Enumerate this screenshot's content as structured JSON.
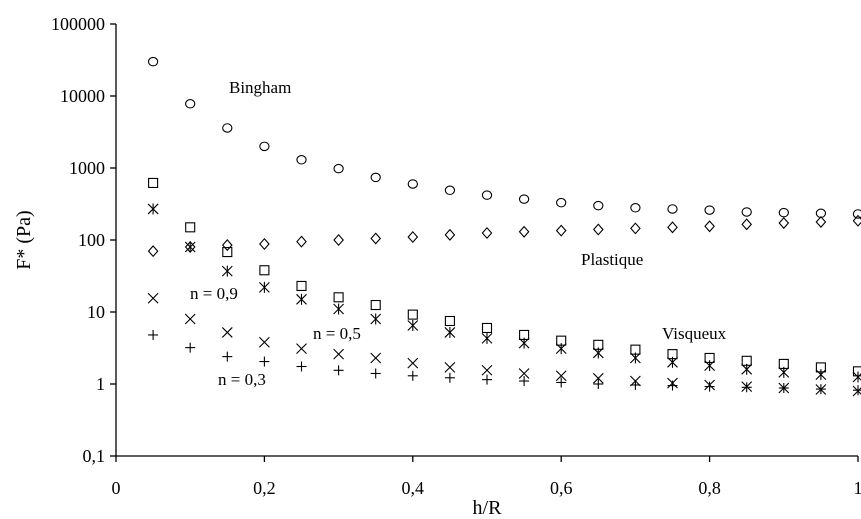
{
  "chart_data": {
    "type": "scatter",
    "xlabel": "h/R",
    "ylabel": "F* (Pa)",
    "xlim": [
      0,
      1
    ],
    "ylim": [
      0.1,
      100000
    ],
    "yscale": "log",
    "xticks": [
      "0",
      "0,2",
      "0,4",
      "0,6",
      "0,8",
      "1"
    ],
    "yticks": [
      "0,1",
      "1",
      "10",
      "100",
      "1000",
      "10000",
      "100000"
    ],
    "grid": false,
    "annotations": [
      "Bingham",
      "Plastique",
      "Visqueux",
      "n = 0,9",
      "n = 0,5",
      "n = 0,3"
    ],
    "x": [
      0.05,
      0.1,
      0.15,
      0.2,
      0.25,
      0.3,
      0.35,
      0.4,
      0.45,
      0.5,
      0.55,
      0.6,
      0.65,
      0.7,
      0.75,
      0.8,
      0.85,
      0.9,
      0.95,
      1.0
    ],
    "series": [
      {
        "marker": "circle",
        "values": [
          30000,
          7800,
          3600,
          2000,
          1300,
          980,
          740,
          600,
          490,
          420,
          370,
          330,
          300,
          280,
          270,
          260,
          245,
          240,
          235,
          230
        ]
      },
      {
        "marker": "diamond",
        "values": [
          70,
          80,
          85,
          88,
          95,
          100,
          105,
          110,
          118,
          125,
          130,
          135,
          140,
          145,
          150,
          155,
          165,
          172,
          178,
          185
        ]
      },
      {
        "marker": "square",
        "values": [
          620,
          150,
          68,
          38,
          23,
          16,
          12.5,
          9.2,
          7.5,
          6.0,
          4.8,
          4.0,
          3.5,
          3.0,
          2.6,
          2.3,
          2.1,
          1.9,
          1.7,
          1.5
        ]
      },
      {
        "marker": "asterisk",
        "values": [
          270,
          80,
          37,
          22,
          15,
          11,
          8,
          6.5,
          5.2,
          4.3,
          3.7,
          3.1,
          2.7,
          2.3,
          2.0,
          1.8,
          1.6,
          1.45,
          1.35,
          1.25
        ]
      },
      {
        "marker": "x",
        "values": [
          15.5,
          8.0,
          5.2,
          3.8,
          3.1,
          2.6,
          2.3,
          1.95,
          1.7,
          1.55,
          1.4,
          1.3,
          1.2,
          1.1,
          1.03,
          0.97,
          0.92,
          0.88,
          0.84,
          0.8
        ]
      },
      {
        "marker": "plus",
        "values": [
          4.8,
          3.2,
          2.4,
          2.05,
          1.75,
          1.55,
          1.4,
          1.3,
          1.22,
          1.15,
          1.1,
          1.05,
          1.0,
          0.97,
          0.95,
          0.92,
          0.9,
          0.88,
          0.85,
          0.82
        ]
      }
    ]
  }
}
